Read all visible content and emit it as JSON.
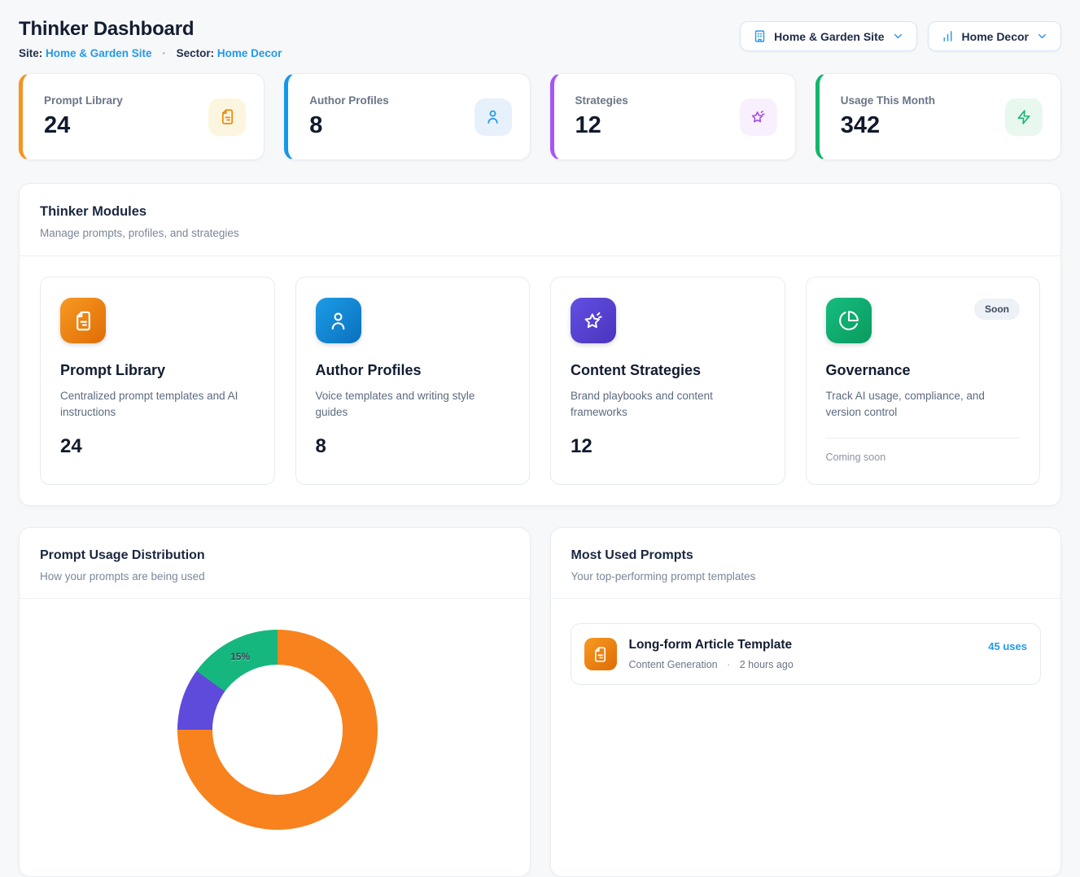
{
  "header": {
    "title": "Thinker Dashboard",
    "site_label": "Site:",
    "site_value": "Home & Garden Site",
    "dot": "·",
    "sector_label": "Sector:",
    "sector_value": "Home Decor",
    "site_button_label": "Home & Garden Site",
    "sector_button_label": "Home Decor",
    "link_color": "#2499e8"
  },
  "stats": [
    {
      "label": "Prompt Library",
      "value": "24",
      "accent": "#f7941e",
      "chip_bg": "#fcf6e1",
      "chip_color": "#ef8a0d",
      "icon": "document-icon"
    },
    {
      "label": "Author Profiles",
      "value": "8",
      "accent": "#1398ea",
      "chip_bg": "#e7f1fc",
      "chip_color": "#2499e8",
      "icon": "user-icon"
    },
    {
      "label": "Strategies",
      "value": "12",
      "accent": "#a855f7",
      "chip_bg": "#f9f0fd",
      "chip_color": "#a34de8",
      "icon": "sparkle-star-icon"
    },
    {
      "label": "Usage This Month",
      "value": "342",
      "accent": "#12b76a",
      "chip_bg": "#e8f8ef",
      "chip_color": "#12b76a",
      "icon": "bolt-icon"
    }
  ],
  "modules": {
    "title": "Thinker Modules",
    "subtitle": "Manage prompts, profiles, and strategies",
    "cards": [
      {
        "title": "Prompt Library",
        "description": "Centralized prompt templates and AI instructions",
        "count": "24",
        "icon": "document-icon",
        "icon_from": "#f79a22",
        "icon_to": "#e06c05"
      },
      {
        "title": "Author Profiles",
        "description": "Voice templates and writing style guides",
        "count": "8",
        "icon": "user-icon",
        "icon_from": "#1c9ce5",
        "icon_to": "#0a71bf"
      },
      {
        "title": "Content Strategies",
        "description": "Brand playbooks and content frameworks",
        "count": "12",
        "icon": "sparkle-star-icon",
        "icon_from": "#6450e2",
        "icon_to": "#4834bd"
      },
      {
        "title": "Governance",
        "description": "Track AI usage, compliance, and version control",
        "badge": "Soon",
        "footnote": "Coming soon",
        "icon": "pie-chart-icon",
        "icon_from": "#16bd80",
        "icon_to": "#0a9a5e"
      }
    ]
  },
  "usage_card": {
    "title": "Prompt Usage Distribution",
    "subtitle": "How your prompts are being used"
  },
  "chart_data": {
    "type": "pie",
    "variant": "donut",
    "title": "Prompt Usage Distribution",
    "order": "clockwise from 12 o'clock",
    "note": "chart is cropped by the viewport bottom; only upper arc visible; unlabeled values estimated from arc angles",
    "segments": [
      {
        "name": "segment-orange",
        "color": "#f8821d",
        "value": 75,
        "label": "",
        "estimated": true
      },
      {
        "name": "segment-purple",
        "color": "#5f4bdb",
        "value": 10,
        "label": "",
        "estimated": true
      },
      {
        "name": "segment-green",
        "color": "#16b77e",
        "value": 15,
        "label": "15%",
        "estimated": false
      }
    ]
  },
  "prompts_card": {
    "title": "Most Used Prompts",
    "subtitle": "Your top-performing prompt templates",
    "items": [
      {
        "title": "Long-form Article Template",
        "category": "Content Generation",
        "dot": "·",
        "time": "2 hours ago",
        "uses": "45 uses",
        "icon": "document-icon",
        "icon_from": "#f79a22",
        "icon_to": "#e06c05"
      }
    ]
  }
}
